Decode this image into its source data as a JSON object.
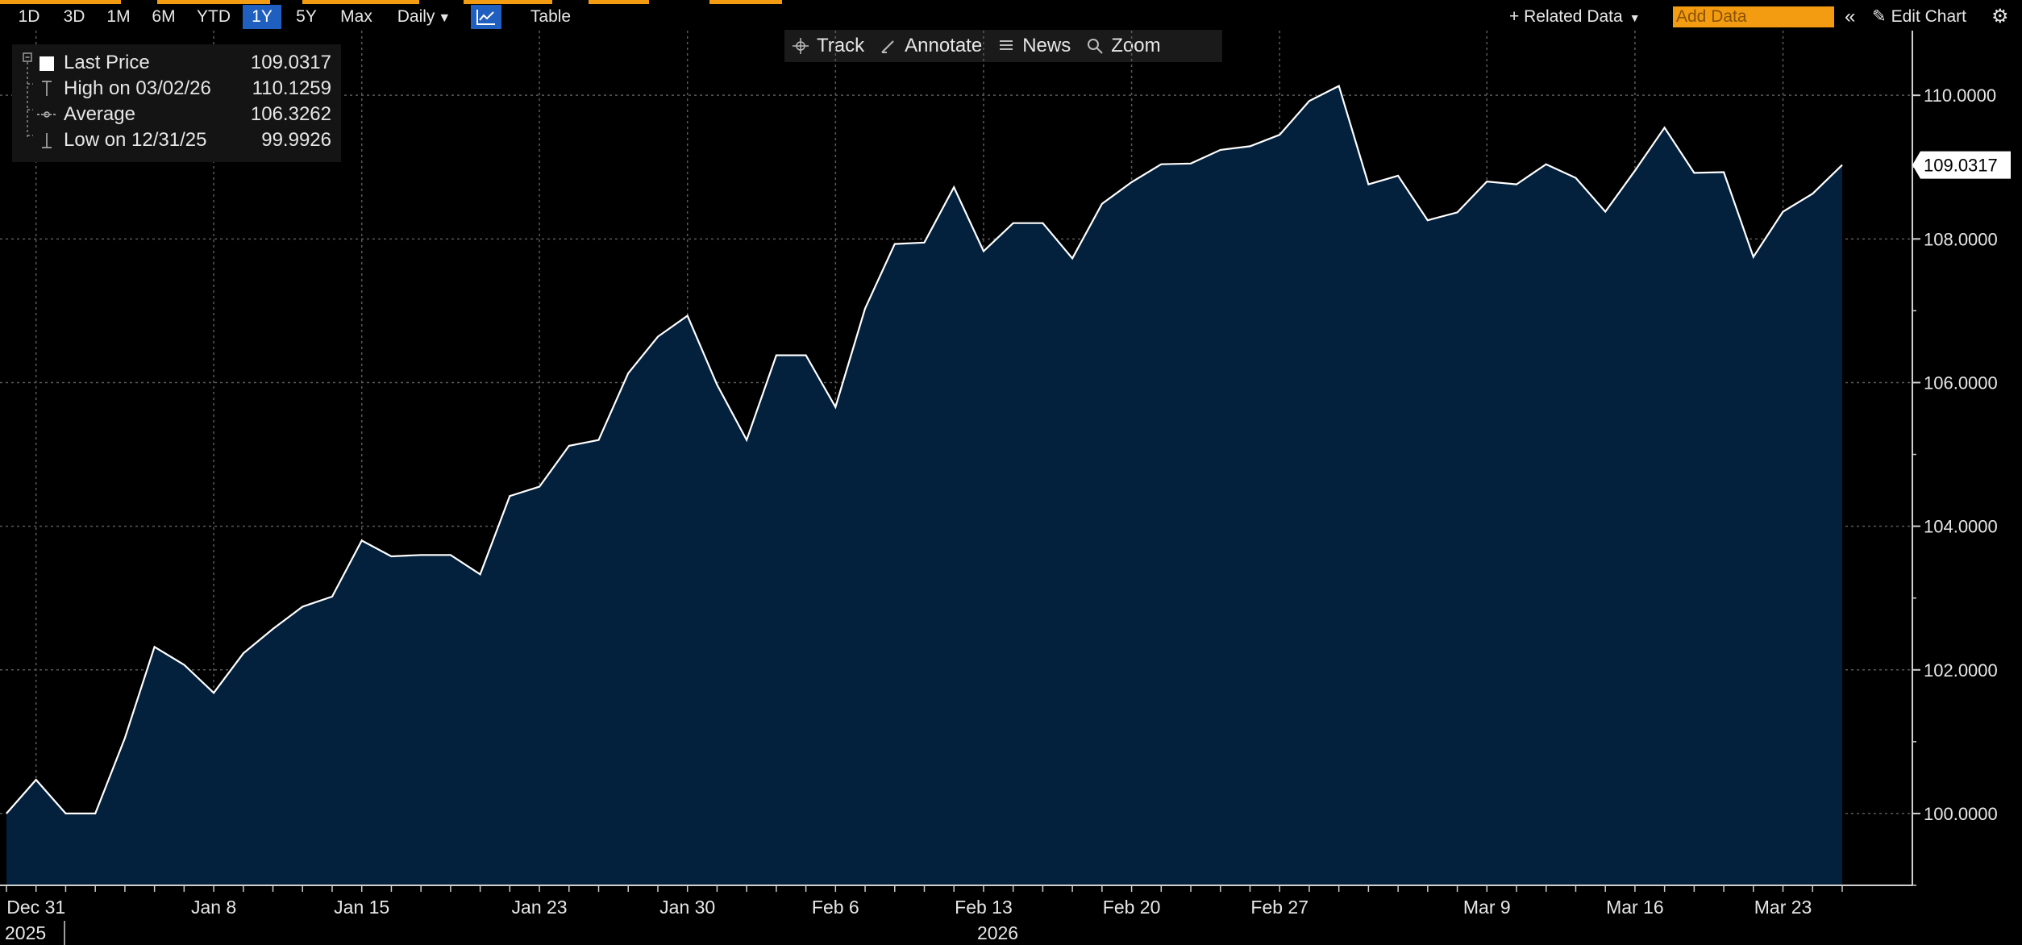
{
  "toolbar": {
    "ranges": [
      {
        "label": "1D",
        "active": false
      },
      {
        "label": "3D",
        "active": false
      },
      {
        "label": "1M",
        "active": false
      },
      {
        "label": "6M",
        "active": false
      },
      {
        "label": "YTD",
        "active": false
      },
      {
        "label": "1Y",
        "active": true
      },
      {
        "label": "5Y",
        "active": false
      },
      {
        "label": "Max",
        "active": false
      }
    ],
    "frequency": "Daily",
    "table_label": "Table",
    "related_data_label": "+ Related Data",
    "add_data_placeholder": "Add Data",
    "edit_chart_label": "Edit Chart",
    "accent_color": "#f39c12",
    "active_color": "#1f5fbf"
  },
  "actions": {
    "track": "Track",
    "annotate": "Annotate",
    "news": "News",
    "zoom": "Zoom"
  },
  "legend": {
    "last_price_label": "Last Price",
    "last_price_value": "109.0317",
    "high_label": "High on 03/02/26",
    "high_value": "110.1259",
    "average_label": "Average",
    "average_value": "106.3262",
    "low_label": "Low on 12/31/25",
    "low_value": "99.9926"
  },
  "chart_data": {
    "type": "area",
    "series": [
      {
        "values": [
          100.0,
          100.47,
          100.0,
          100.0,
          101.05,
          102.32,
          102.07,
          101.68,
          102.23,
          102.57,
          102.88,
          103.02,
          103.8,
          103.58,
          103.6,
          103.6,
          103.33,
          104.42,
          104.55,
          105.12,
          105.2,
          106.13,
          106.64,
          106.93,
          105.97,
          105.2,
          106.38,
          106.38,
          105.66,
          107.03,
          107.93,
          107.95,
          108.72,
          107.83,
          108.22,
          108.22,
          107.73,
          108.49,
          108.79,
          109.04,
          109.05,
          109.24,
          109.29,
          109.45,
          109.92,
          110.13,
          108.76,
          108.88,
          108.26,
          108.37,
          108.8,
          108.76,
          109.04,
          108.85,
          108.38,
          108.95,
          109.55,
          108.92,
          108.93,
          107.75,
          108.38,
          108.63,
          109.03
        ],
        "color": "#ffffff",
        "fill": "#03203d"
      }
    ],
    "x_tick_labels": [
      "Dec 31",
      "Jan 8",
      "Jan 15",
      "Jan 23",
      "Jan 30",
      "Feb 6",
      "Feb 13",
      "Feb 20",
      "Feb 27",
      "Mar 9",
      "Mar 16",
      "Mar 23"
    ],
    "x_tick_index": [
      1,
      7,
      12,
      18,
      23,
      28,
      33,
      38,
      43,
      50,
      55,
      60
    ],
    "year_labels": [
      "2025",
      "2026"
    ],
    "year_index": [
      0,
      33
    ],
    "y_ticks": [
      100.0,
      102.0,
      104.0,
      106.0,
      108.0,
      110.0
    ],
    "y_tick_labels": [
      "100.0000",
      "102.0000",
      "104.0000",
      "106.0000",
      "108.0000",
      "110.0000"
    ],
    "ylim": [
      99.0,
      110.9
    ],
    "last_value_label": "109.0317",
    "grid": true,
    "background": "#000000"
  }
}
